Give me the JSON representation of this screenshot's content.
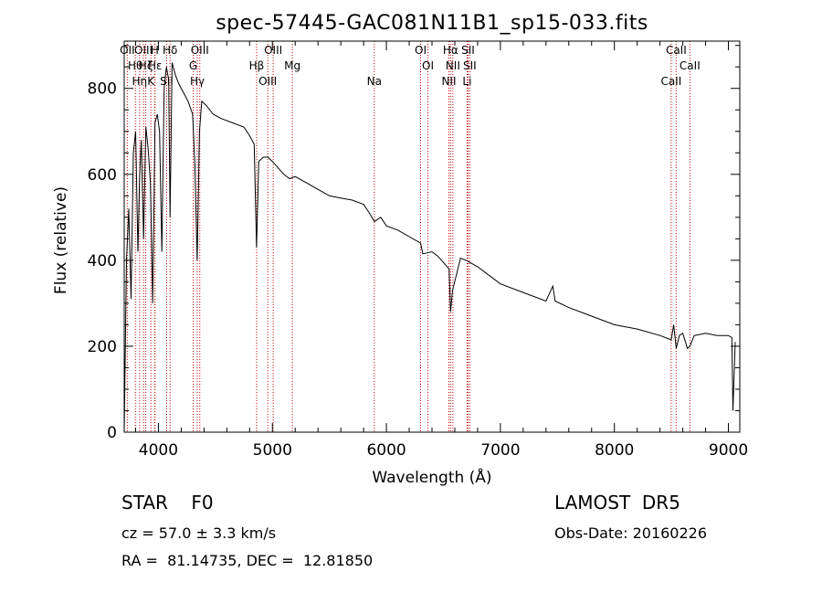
{
  "chart_data": {
    "type": "line",
    "title": "spec-57445-GAC081N11B1_sp15-033.fits",
    "xlabel": "Wavelength (Å)",
    "ylabel": "Flux (relative)",
    "xlim": [
      3700,
      9100
    ],
    "ylim": [
      0,
      910
    ],
    "xticks": [
      4000,
      5000,
      6000,
      7000,
      8000,
      9000
    ],
    "yticks": [
      0,
      200,
      400,
      600,
      800
    ],
    "grid": false,
    "series": [
      {
        "x": [
          3700,
          3720,
          3740,
          3760,
          3780,
          3800,
          3820,
          3835,
          3850,
          3870,
          3890,
          3910,
          3930,
          3950,
          3970,
          3990,
          4010,
          4030,
          4050,
          4070,
          4090,
          4102,
          4120,
          4150,
          4180,
          4220,
          4260,
          4300,
          4320,
          4340,
          4360,
          4380,
          4420,
          4480,
          4550,
          4650,
          4750,
          4800,
          4840,
          4861,
          4880,
          4920,
          4960,
          5000,
          5050,
          5100,
          5150,
          5200,
          5300,
          5400,
          5500,
          5600,
          5700,
          5800,
          5850,
          5895,
          5950,
          6000,
          6100,
          6200,
          6300,
          6320,
          6400,
          6450,
          6500,
          6550,
          6563,
          6580,
          6650,
          6700,
          6800,
          6900,
          7000,
          7200,
          7400,
          7460,
          7480,
          7600,
          7800,
          8000,
          8200,
          8400,
          8498,
          8520,
          8542,
          8570,
          8600,
          8640,
          8662,
          8700,
          8800,
          8900,
          9000,
          9030,
          9040,
          9060
        ],
        "values": [
          0,
          400,
          520,
          310,
          650,
          700,
          420,
          590,
          680,
          450,
          710,
          660,
          580,
          300,
          720,
          740,
          700,
          420,
          800,
          850,
          820,
          500,
          860,
          830,
          810,
          790,
          770,
          740,
          620,
          400,
          700,
          770,
          760,
          740,
          730,
          720,
          710,
          690,
          670,
          430,
          630,
          640,
          640,
          630,
          615,
          600,
          590,
          595,
          580,
          565,
          550,
          545,
          540,
          530,
          510,
          490,
          500,
          480,
          470,
          455,
          440,
          415,
          420,
          410,
          395,
          380,
          280,
          330,
          405,
          400,
          385,
          365,
          345,
          325,
          305,
          340,
          305,
          290,
          270,
          250,
          240,
          225,
          215,
          250,
          195,
          225,
          230,
          195,
          200,
          225,
          230,
          225,
          225,
          220,
          50,
          210
        ]
      }
    ],
    "line_markers": [
      {
        "wl": 3727,
        "labels": [
          "OII"
        ]
      },
      {
        "wl": 3798,
        "labels": [
          "Hθ"
        ]
      },
      {
        "wl": 3835,
        "labels": [
          "Hη"
        ]
      },
      {
        "wl": 3869,
        "labels": [
          "OIII"
        ]
      },
      {
        "wl": 3889,
        "labels": [
          "Hζ"
        ]
      },
      {
        "wl": 3934,
        "labels": [
          "K"
        ]
      },
      {
        "wl": 3968,
        "labels": [
          "H"
        ]
      },
      {
        "wl": 3970,
        "labels": [
          "Hε"
        ]
      },
      {
        "wl": 4072,
        "labels": [
          "SII"
        ]
      },
      {
        "wl": 4102,
        "labels": [
          "Hδ"
        ]
      },
      {
        "wl": 4305,
        "labels": [
          "G"
        ]
      },
      {
        "wl": 4341,
        "labels": [
          "Hγ"
        ]
      },
      {
        "wl": 4363,
        "labels": [
          "OIII"
        ]
      },
      {
        "wl": 4861,
        "labels": [
          "Hβ"
        ]
      },
      {
        "wl": 4959,
        "labels": [
          "OIII"
        ]
      },
      {
        "wl": 5007,
        "labels": [
          "OIII"
        ]
      },
      {
        "wl": 5175,
        "labels": [
          "Mg"
        ]
      },
      {
        "wl": 5894,
        "labels": [
          "Na"
        ]
      },
      {
        "wl": 6300,
        "labels": [
          "OI"
        ]
      },
      {
        "wl": 6364,
        "labels": [
          "OI"
        ]
      },
      {
        "wl": 6548,
        "labels": [
          "NII"
        ]
      },
      {
        "wl": 6563,
        "labels": [
          "Hα"
        ]
      },
      {
        "wl": 6583,
        "labels": [
          "NII"
        ]
      },
      {
        "wl": 6708,
        "labels": [
          "Li"
        ]
      },
      {
        "wl": 6716,
        "labels": [
          "SII"
        ]
      },
      {
        "wl": 6731,
        "labels": [
          "SII"
        ]
      },
      {
        "wl": 8498,
        "labels": [
          "CaII"
        ]
      },
      {
        "wl": 8542,
        "labels": [
          "CaII"
        ]
      },
      {
        "wl": 8662,
        "labels": [
          "CaII"
        ]
      }
    ],
    "colors": {
      "spectrum": "#000000",
      "markers": "#c00000",
      "axes": "#000000"
    }
  },
  "info": {
    "class": "STAR    F0",
    "survey": "LAMOST  DR5",
    "cz": "cz = 57.0 ± 3.3 km/s",
    "obs_date": "Obs-Date: 20160226",
    "radec": "RA =  81.14735, DEC =  12.81850"
  }
}
